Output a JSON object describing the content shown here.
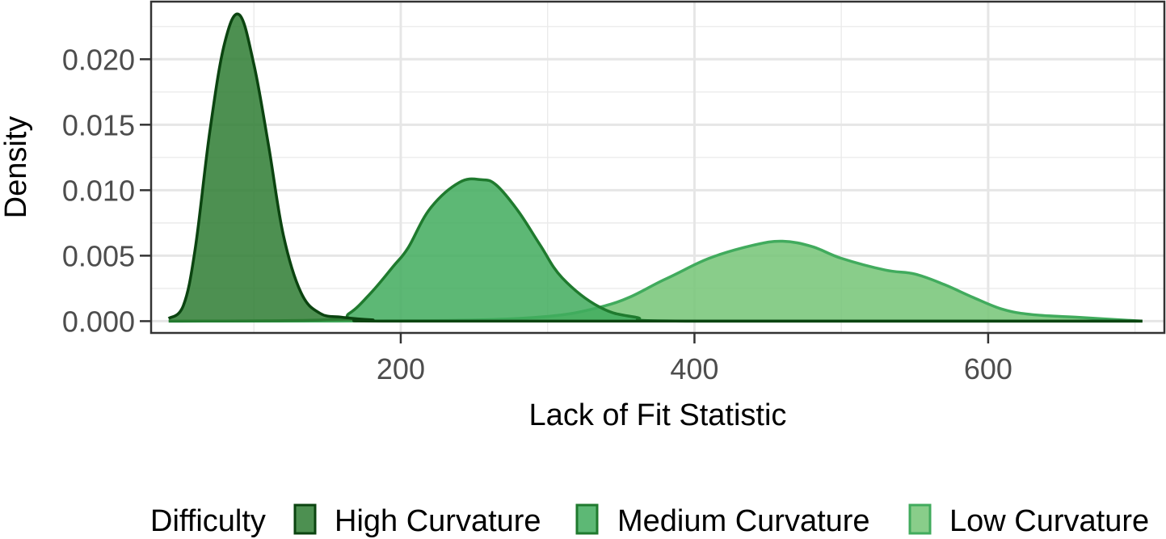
{
  "chart_data": {
    "type": "area",
    "title": "",
    "xlabel": "Lack of Fit Statistic",
    "ylabel": "Density",
    "xlim": [
      30,
      720
    ],
    "ylim": [
      -0.0009,
      0.0244
    ],
    "x_ticks": [
      200,
      400,
      600
    ],
    "y_ticks": [
      0.0,
      0.005,
      0.01,
      0.015,
      0.02
    ],
    "y_tick_labels": [
      "0.000",
      "0.005",
      "0.010",
      "0.015",
      "0.020"
    ],
    "x_tick_labels": [
      "200",
      "400",
      "600"
    ],
    "grid": true,
    "legend": {
      "title": "Difficulty",
      "position": "bottom"
    },
    "series": [
      {
        "name": "Low Curvature",
        "fill": "#74c476",
        "stroke": "#41ab5d",
        "x": [
          42,
          150,
          280,
          340,
          380,
          410,
          440,
          460,
          480,
          500,
          530,
          550,
          570,
          590,
          610,
          630,
          660,
          705
        ],
        "y": [
          0.0,
          0.0,
          0.0002,
          0.0012,
          0.0032,
          0.0048,
          0.0058,
          0.0061,
          0.0057,
          0.0048,
          0.0039,
          0.0036,
          0.0028,
          0.0018,
          0.0009,
          0.0005,
          0.0003,
          0.0
        ]
      },
      {
        "name": "Medium Curvature",
        "fill": "#41ab5d",
        "stroke": "#1f7a2e",
        "x": [
          42,
          150,
          165,
          180,
          195,
          205,
          220,
          240,
          255,
          265,
          280,
          295,
          310,
          335,
          360,
          400,
          705
        ],
        "y": [
          0.0,
          0.0001,
          0.0006,
          0.0022,
          0.0042,
          0.0056,
          0.0086,
          0.0106,
          0.0108,
          0.0104,
          0.0084,
          0.0058,
          0.0033,
          0.0011,
          0.0003,
          0.0,
          0.0
        ]
      },
      {
        "name": "High Curvature",
        "fill": "#2e7d32",
        "stroke": "#0b4410",
        "x": [
          42,
          52,
          60,
          70,
          80,
          90,
          100,
          110,
          120,
          132,
          145,
          160,
          180,
          220,
          705
        ],
        "y": [
          0.0002,
          0.0012,
          0.0055,
          0.0145,
          0.0212,
          0.0234,
          0.0196,
          0.0134,
          0.0066,
          0.0022,
          0.0006,
          0.0003,
          0.0001,
          0.0,
          0.0
        ]
      }
    ]
  }
}
